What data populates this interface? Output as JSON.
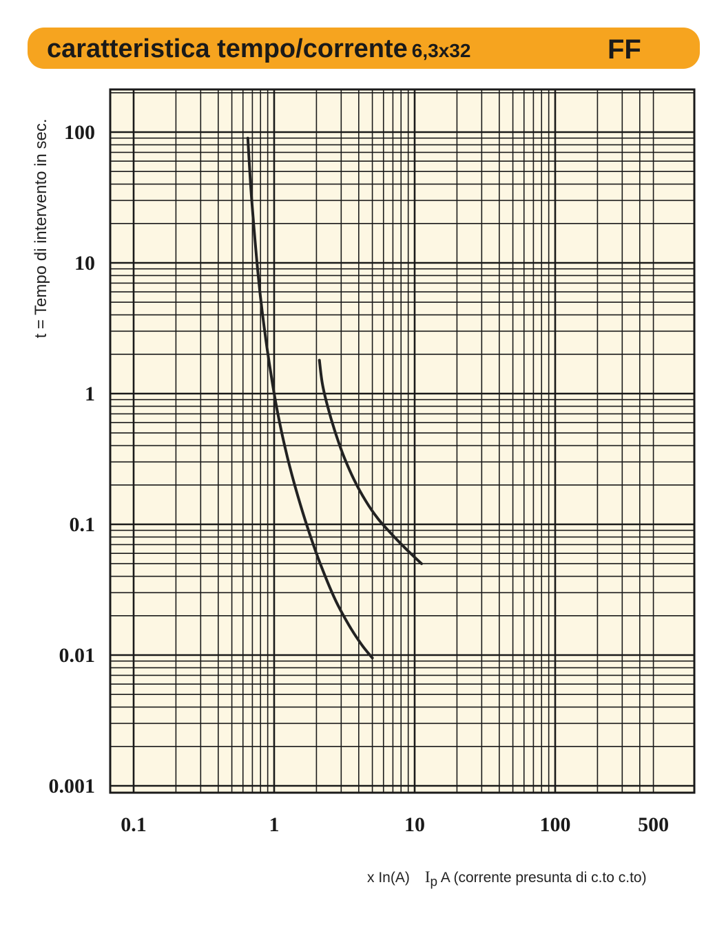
{
  "header": {
    "title": "caratteristica tempo/corrente",
    "size": "6,3x32",
    "code": "FF"
  },
  "colors": {
    "header_bg": "#f6a41f",
    "plot_bg": "#fdf7e3",
    "grid": "#1a1a1a",
    "curve": "#222222"
  },
  "chart_data": {
    "type": "line",
    "title": "caratteristica tempo/corrente 6,3x32 FF",
    "xlabel_prefix": "x In(A)",
    "xlabel_symbol": "I",
    "xlabel_sub": "p",
    "xlabel_suffix": "A (corrente presunta di c.to c.to)",
    "ylabel": "t = Tempo di intervento in sec.",
    "x_scale": "log",
    "y_scale": "log",
    "xlim": [
      0.1,
      500
    ],
    "ylim": [
      0.001,
      200
    ],
    "grid": true,
    "x_ticks": [
      {
        "value": 0.1,
        "label": "0.1"
      },
      {
        "value": 1,
        "label": "1"
      },
      {
        "value": 10,
        "label": "10"
      },
      {
        "value": 100,
        "label": "100"
      },
      {
        "value": 500,
        "label": "500"
      }
    ],
    "y_ticks": [
      {
        "value": 100,
        "label": "100"
      },
      {
        "value": 10,
        "label": "10"
      },
      {
        "value": 1,
        "label": "1"
      },
      {
        "value": 0.1,
        "label": "0.1"
      },
      {
        "value": 0.01,
        "label": "0.01"
      },
      {
        "value": 0.001,
        "label": "0.001"
      }
    ],
    "series": [
      {
        "x": [
          0.65,
          0.68,
          0.72,
          0.78,
          0.85,
          0.95,
          1.05,
          1.2,
          1.4,
          1.7,
          2.1,
          2.7,
          3.4,
          4.2,
          5.0
        ],
        "y": [
          90,
          40,
          18,
          7,
          3.2,
          1.4,
          0.75,
          0.38,
          0.2,
          0.1,
          0.052,
          0.027,
          0.017,
          0.012,
          0.0095
        ]
      },
      {
        "x": [
          2.1,
          2.2,
          2.4,
          2.7,
          3.1,
          3.7,
          4.5,
          5.5,
          6.8,
          8.3,
          10.0,
          11.2
        ],
        "y": [
          1.8,
          1.2,
          0.8,
          0.52,
          0.34,
          0.22,
          0.15,
          0.11,
          0.085,
          0.068,
          0.056,
          0.05
        ]
      }
    ]
  }
}
